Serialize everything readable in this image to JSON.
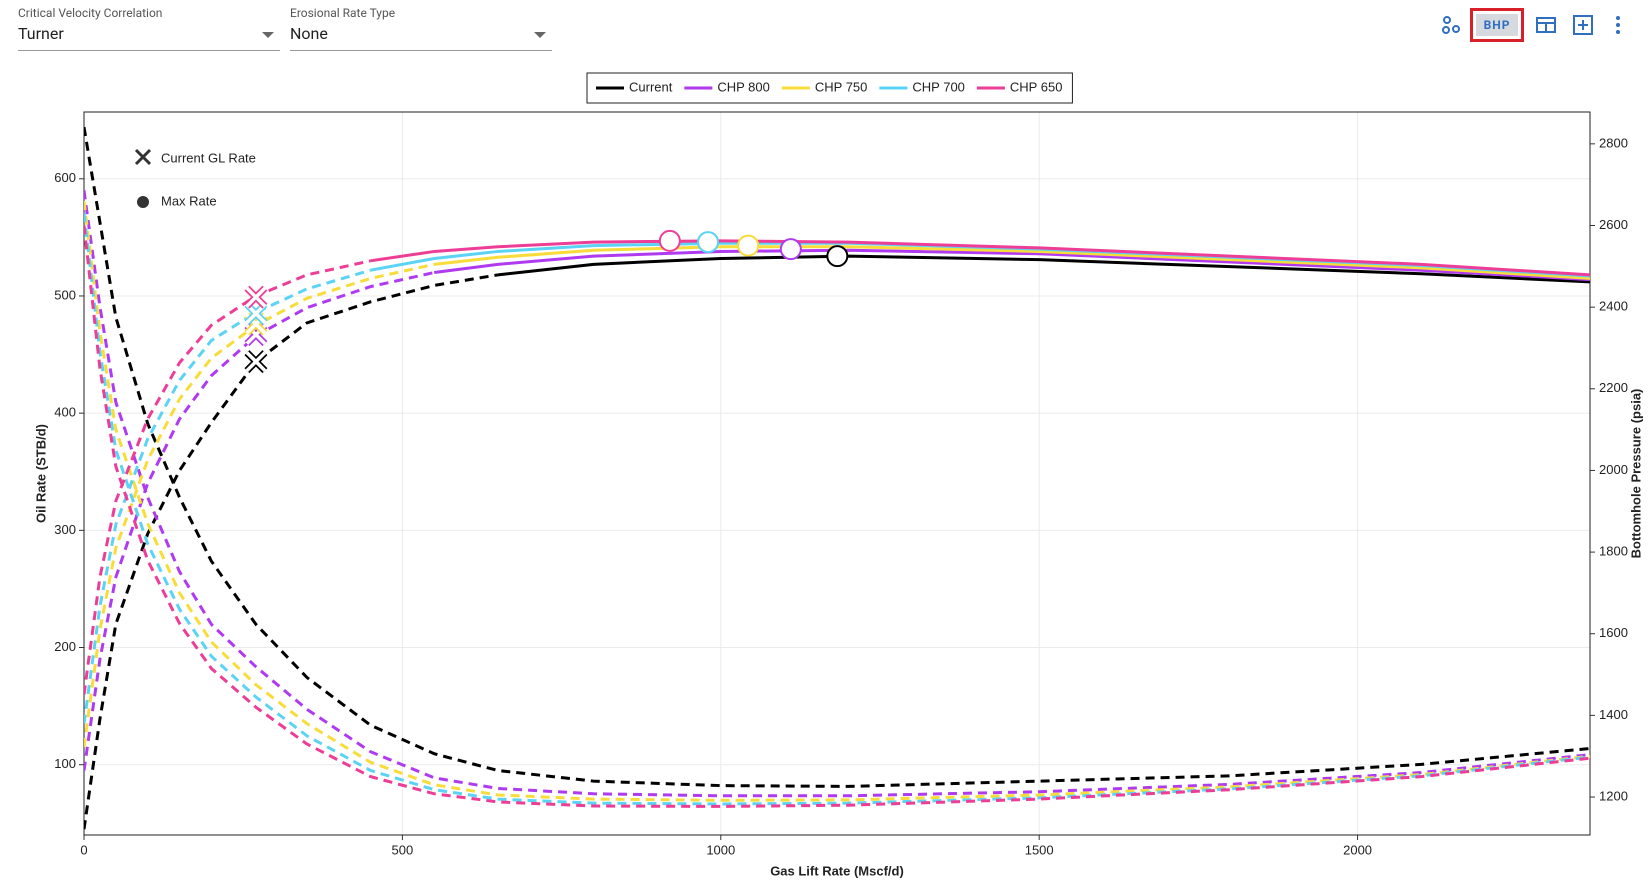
{
  "toolbar": {
    "fields": [
      {
        "label": "Critical Velocity Correlation",
        "value": "Turner"
      },
      {
        "label": "Erosional Rate Type",
        "value": "None"
      }
    ],
    "button": "BHP"
  },
  "chart_data": {
    "type": "line",
    "xlabel": "Gas Lift Rate (Mscf/d)",
    "ylabel": "Oil Rate (STB/d)",
    "y2label": "Bottomhole Pressure (psia)",
    "xlim": [
      0,
      2365
    ],
    "ylim": [
      40,
      657
    ],
    "y2lim": [
      1107,
      2878
    ],
    "xticks": [
      0,
      500,
      1000,
      1500,
      2000
    ],
    "yticks": [
      100,
      200,
      300,
      400,
      500,
      600
    ],
    "y2ticks": [
      1200,
      1400,
      1600,
      1800,
      2000,
      2200,
      2400,
      2600,
      2800
    ],
    "grid": true,
    "legend": "top",
    "annotations": {
      "current_gl": "Current GL Rate",
      "max_rate": "Max Rate"
    },
    "x": [
      0,
      25,
      50,
      100,
      150,
      200,
      270,
      350,
      450,
      550,
      650,
      800,
      1000,
      1200,
      1500,
      1800,
      2100,
      2365
    ],
    "series": [
      {
        "name": "Current",
        "color": "#000000",
        "solid_from": 650,
        "values": [
          45,
          139,
          220,
          297,
          351,
          392,
          444,
          477,
          495,
          509,
          518,
          527,
          532,
          534,
          531,
          525,
          519,
          512
        ],
        "bhp": [
          2841,
          2608,
          2375,
          2115,
          1934,
          1778,
          1623,
          1493,
          1376,
          1306,
          1265,
          1239,
          1228,
          1226,
          1239,
          1252,
          1280,
          1319
        ],
        "current_gl_x": 270,
        "current_gl_y": 444,
        "max_x": 1183,
        "max_y": 534
      },
      {
        "name": "CHP 800",
        "color": "#b03af0",
        "solid_from": 550,
        "values": [
          95,
          190,
          260,
          340,
          395,
          432,
          466,
          490,
          508,
          520,
          527,
          534,
          538,
          539,
          536,
          529,
          522,
          514
        ],
        "bhp": [
          2686,
          2401,
          2167,
          1934,
          1752,
          1623,
          1519,
          1415,
          1311,
          1247,
          1221,
          1208,
          1203,
          1203,
          1213,
          1231,
          1260,
          1304
        ],
        "current_gl_x": 270,
        "current_gl_y": 467,
        "max_x": 1110,
        "max_y": 540
      },
      {
        "name": "CHP 750",
        "color": "#f7dc3a",
        "solid_from": 550,
        "values": [
          115,
          215,
          285,
          360,
          412,
          447,
          475,
          498,
          515,
          527,
          533,
          539,
          542,
          542,
          538,
          531,
          524,
          515
        ],
        "bhp": [
          2660,
          2340,
          2100,
          1870,
          1700,
          1580,
          1475,
          1380,
          1285,
          1230,
          1205,
          1195,
          1192,
          1193,
          1205,
          1225,
          1255,
          1300
        ],
        "current_gl_x": 270,
        "current_gl_y": 476,
        "max_x": 1043,
        "max_y": 543
      },
      {
        "name": "CHP 700",
        "color": "#5bd3f5",
        "solid_from": 450,
        "values": [
          135,
          235,
          305,
          378,
          428,
          462,
          486,
          506,
          522,
          532,
          538,
          543,
          545,
          545,
          540,
          533,
          526,
          517
        ],
        "bhp": [
          2630,
          2290,
          2050,
          1820,
          1660,
          1545,
          1445,
          1350,
          1265,
          1218,
          1195,
          1185,
          1183,
          1185,
          1198,
          1220,
          1252,
          1298
        ],
        "current_gl_x": 270,
        "current_gl_y": 485,
        "max_x": 980,
        "max_y": 546
      },
      {
        "name": "CHP 650",
        "color": "#ee3d96",
        "solid_from": 450,
        "values": [
          160,
          260,
          325,
          395,
          443,
          475,
          500,
          518,
          530,
          538,
          542,
          546,
          547,
          546,
          541,
          534,
          527,
          518
        ],
        "bhp": [
          2600,
          2250,
          2010,
          1780,
          1625,
          1515,
          1420,
          1330,
          1250,
          1208,
          1188,
          1178,
          1177,
          1180,
          1195,
          1218,
          1250,
          1295
        ],
        "current_gl_x": 270,
        "current_gl_y": 499,
        "max_x": 920,
        "max_y": 547
      }
    ]
  }
}
